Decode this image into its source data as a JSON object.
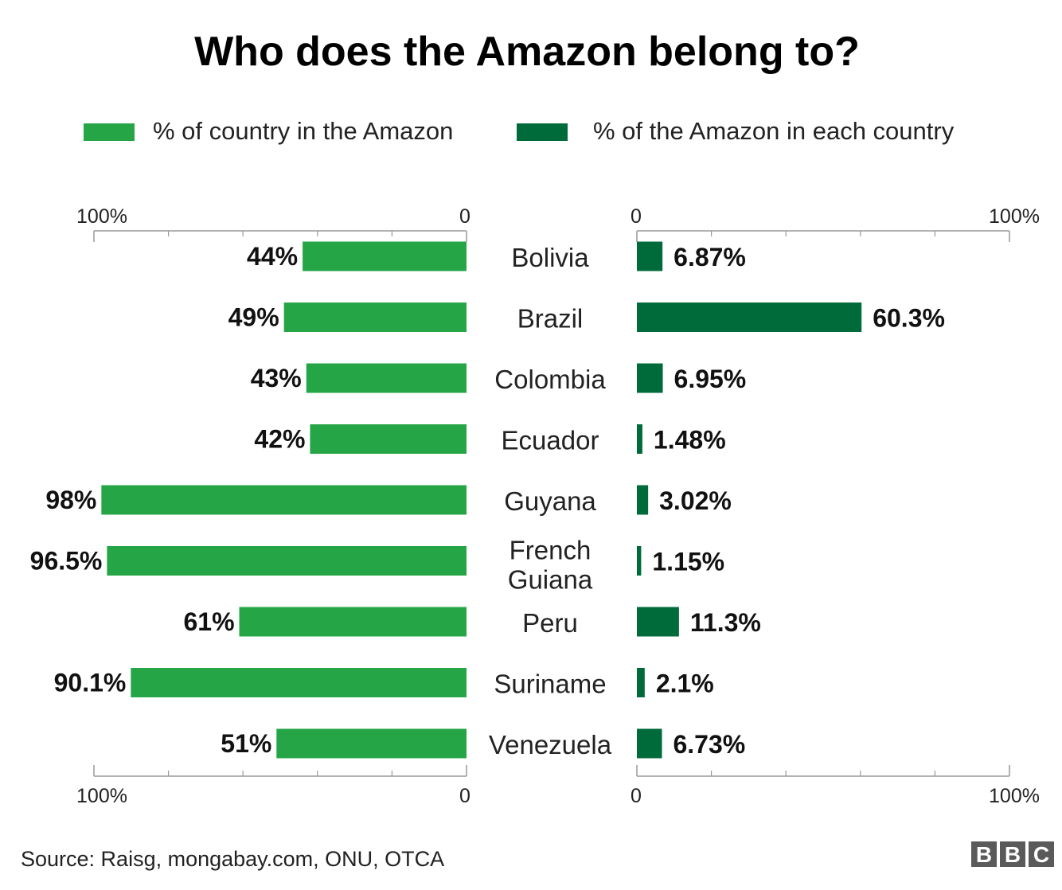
{
  "chart_data": {
    "type": "bar",
    "title": "Who does the Amazon belong to?",
    "source": "Source: Raisg, mongabay.com, ONU, OTCA",
    "logo_letters": [
      "B",
      "B",
      "C"
    ],
    "categories": [
      [
        "Bolivia"
      ],
      [
        "Brazil"
      ],
      [
        "Colombia"
      ],
      [
        "Ecuador"
      ],
      [
        "Guyana"
      ],
      [
        "French",
        "Guiana"
      ],
      [
        "Peru"
      ],
      [
        "Suriname"
      ],
      [
        "Venezuela"
      ]
    ],
    "series": [
      {
        "name": "% of country in the Amazon",
        "color": "#25a546",
        "direction": "left",
        "values": [
          44,
          49,
          43,
          42,
          98,
          96.5,
          61,
          90.1,
          51
        ],
        "labels": [
          "44",
          "49",
          "43",
          "42",
          "98",
          "96.5",
          "61",
          "90.1",
          "51"
        ]
      },
      {
        "name": "% of the Amazon in each country",
        "color": "#006b3a",
        "direction": "right",
        "values": [
          6.87,
          60.3,
          6.95,
          1.48,
          3.02,
          1.15,
          11.3,
          2.1,
          6.73
        ],
        "labels": [
          "6.87",
          "60.3",
          "6.95",
          "1.48",
          "3.02",
          "1.15",
          "11.3",
          "2.1",
          "6.73"
        ]
      }
    ],
    "value_suffix": "%",
    "axis": {
      "range": [
        0,
        100
      ],
      "tick_labels": {
        "max": "100%",
        "min": "0"
      },
      "minor_ticks": [
        20,
        40,
        60,
        80
      ]
    },
    "legend_position": "top",
    "grid": false
  }
}
